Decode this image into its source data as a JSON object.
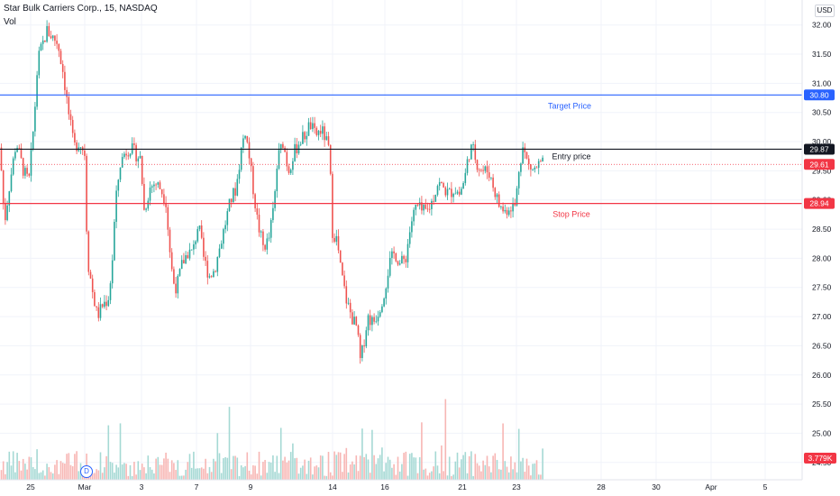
{
  "header": {
    "title": "Star Bulk Carriers Corp., 15, NASDAQ",
    "volume_label": "Vol",
    "currency": "USD"
  },
  "event_badge": "D",
  "chart_data": {
    "type": "candlestick",
    "symbol": "Star Bulk Carriers Corp.",
    "interval": "15",
    "exchange": "NASDAQ",
    "currency": "USD",
    "ylim": [
      24.45,
      32.15
    ],
    "y_ticks": [
      32.0,
      31.5,
      31.0,
      30.5,
      30.0,
      29.5,
      29.0,
      28.5,
      28.0,
      27.5,
      27.0,
      26.5,
      26.0,
      25.5,
      25.0,
      24.5
    ],
    "x_ticks": [
      "25",
      "Mar",
      "3",
      "7",
      "9",
      "14",
      "16",
      "21",
      "23",
      "28",
      "30",
      "Apr",
      "5"
    ],
    "grid": true,
    "colors": {
      "up": "#26a69a",
      "down": "#ef5350",
      "target": "#2962ff",
      "entry": "#131722",
      "stop": "#f23645"
    },
    "levels": [
      {
        "label": "Target Price",
        "price": 30.8,
        "price_label": "30.80",
        "color": "#2962ff"
      },
      {
        "label": "Entry price",
        "price": 29.87,
        "price_label": "29.87",
        "color": "#131722"
      },
      {
        "label": "Stop Price",
        "price": 28.94,
        "price_label": "28.94",
        "color": "#f23645"
      }
    ],
    "last_price": {
      "price": 29.61,
      "label": "29.61",
      "color": "#f23645"
    },
    "volume_last_label": "3.779K",
    "price_path": [
      [
        0,
        29.9
      ],
      [
        5,
        28.6
      ],
      [
        10,
        29.2
      ],
      [
        18,
        30.0
      ],
      [
        26,
        29.5
      ],
      [
        32,
        29.3
      ],
      [
        38,
        30.4
      ],
      [
        42,
        31.4
      ],
      [
        48,
        31.7
      ],
      [
        52,
        31.9
      ],
      [
        58,
        31.8
      ],
      [
        64,
        31.7
      ],
      [
        70,
        31.2
      ],
      [
        76,
        30.5
      ],
      [
        82,
        29.9
      ],
      [
        88,
        30.0
      ],
      [
        94,
        29.8
      ],
      [
        97,
        28.0
      ],
      [
        103,
        27.4
      ],
      [
        108,
        27.0
      ],
      [
        114,
        27.2
      ],
      [
        120,
        27.3
      ],
      [
        124,
        27.8
      ],
      [
        128,
        28.9
      ],
      [
        133,
        29.6
      ],
      [
        138,
        29.8
      ],
      [
        144,
        29.9
      ],
      [
        150,
        29.8
      ],
      [
        156,
        29.7
      ],
      [
        160,
        28.8
      ],
      [
        166,
        29.2
      ],
      [
        172,
        29.3
      ],
      [
        178,
        29.2
      ],
      [
        184,
        29.0
      ],
      [
        188,
        28.2
      ],
      [
        192,
        27.6
      ],
      [
        196,
        27.5
      ],
      [
        202,
        27.9
      ],
      [
        208,
        28.1
      ],
      [
        214,
        28.1
      ],
      [
        220,
        28.6
      ],
      [
        226,
        28.0
      ],
      [
        232,
        27.7
      ],
      [
        238,
        27.8
      ],
      [
        244,
        28.2
      ],
      [
        250,
        28.6
      ],
      [
        256,
        29.0
      ],
      [
        262,
        29.2
      ],
      [
        268,
        29.9
      ],
      [
        272,
        30.2
      ],
      [
        276,
        29.8
      ],
      [
        280,
        29.3
      ],
      [
        286,
        28.6
      ],
      [
        292,
        28.2
      ],
      [
        298,
        28.3
      ],
      [
        304,
        28.9
      ],
      [
        308,
        29.7
      ],
      [
        314,
        30.0
      ],
      [
        320,
        29.5
      ],
      [
        326,
        29.8
      ],
      [
        332,
        30.0
      ],
      [
        338,
        30.1
      ],
      [
        344,
        30.3
      ],
      [
        350,
        30.1
      ],
      [
        356,
        30.2
      ],
      [
        360,
        30.1
      ],
      [
        366,
        29.8
      ],
      [
        368,
        28.5
      ],
      [
        374,
        28.3
      ],
      [
        378,
        27.8
      ],
      [
        384,
        27.3
      ],
      [
        390,
        27.0
      ],
      [
        396,
        26.8
      ],
      [
        400,
        26.2
      ],
      [
        404,
        26.6
      ],
      [
        408,
        27.0
      ],
      [
        414,
        26.9
      ],
      [
        420,
        27.1
      ],
      [
        426,
        27.4
      ],
      [
        432,
        27.9
      ],
      [
        438,
        28.1
      ],
      [
        444,
        27.9
      ],
      [
        450,
        28.0
      ],
      [
        456,
        28.6
      ],
      [
        462,
        28.9
      ],
      [
        468,
        28.8
      ],
      [
        474,
        28.8
      ],
      [
        480,
        29.0
      ],
      [
        486,
        29.3
      ],
      [
        492,
        29.2
      ],
      [
        498,
        29.1
      ],
      [
        504,
        29.2
      ],
      [
        510,
        29.1
      ],
      [
        516,
        29.4
      ],
      [
        520,
        29.8
      ],
      [
        524,
        29.9
      ],
      [
        530,
        29.6
      ],
      [
        536,
        29.5
      ],
      [
        542,
        29.5
      ],
      [
        548,
        29.2
      ],
      [
        554,
        28.9
      ],
      [
        560,
        28.8
      ],
      [
        566,
        28.9
      ],
      [
        572,
        28.9
      ],
      [
        576,
        29.6
      ],
      [
        580,
        29.9
      ],
      [
        586,
        29.6
      ],
      [
        592,
        29.5
      ],
      [
        598,
        29.6
      ],
      [
        604,
        29.61
      ]
    ]
  }
}
